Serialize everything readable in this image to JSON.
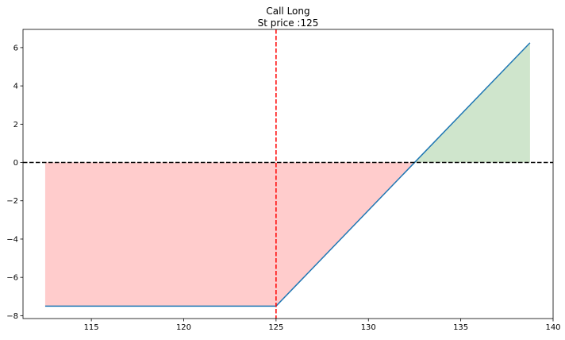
{
  "chart_data": {
    "type": "line",
    "title": "Call Long",
    "subtitle": "St price :125",
    "xlabel": "",
    "ylabel": "",
    "xlim": [
      111.3,
      140.0
    ],
    "ylim": [
      -8.15,
      6.95
    ],
    "x_ticks": [
      115,
      120,
      125,
      130,
      135,
      140
    ],
    "y_ticks": [
      -8,
      -6,
      -4,
      -2,
      0,
      2,
      4,
      6
    ],
    "y_tick_labels": [
      "−8",
      "−6",
      "−4",
      "−2",
      "0",
      "2",
      "4",
      "6"
    ],
    "grid": false,
    "legend": "none",
    "strike": 125,
    "breakeven": 132.5,
    "series": [
      {
        "x": [
          112.5,
          125.0,
          138.75
        ],
        "y": [
          -7.5,
          -7.5,
          6.25
        ],
        "color": "#1f77b4"
      }
    ],
    "fill_loss_color": "#ffcccc",
    "fill_profit_color": "#cfe5cc",
    "zero_line_color": "#000000",
    "strike_line_color": "#ff0000"
  }
}
